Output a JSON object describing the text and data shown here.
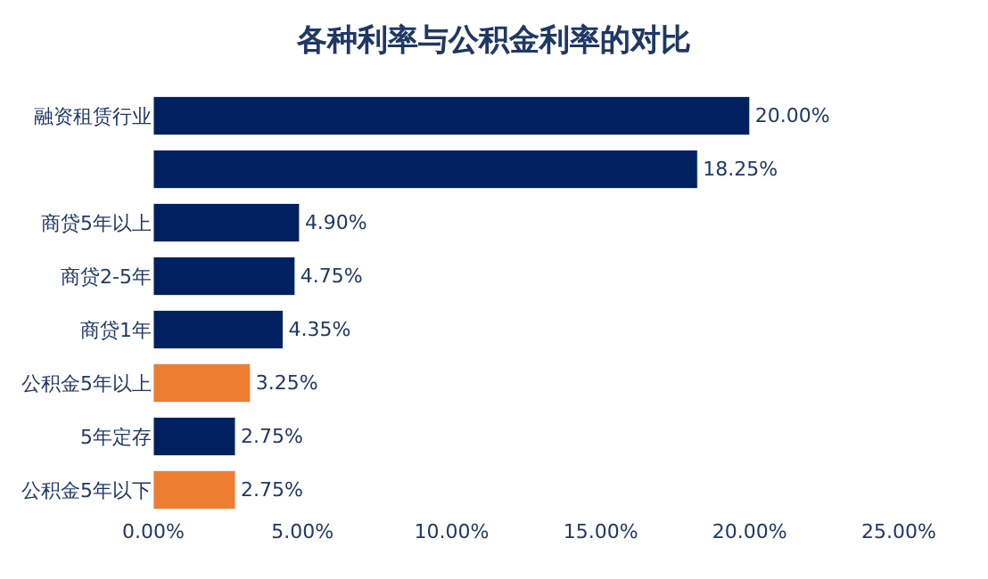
{
  "chart_data": {
    "type": "bar",
    "orientation": "horizontal",
    "title": "各种利率与公积金利率的对比",
    "categories": [
      "融资租赁行业",
      null,
      "商贷5年以上",
      "商贷2-5年",
      "商贷1年",
      "公积金5年以上",
      "5年定存",
      "公积金5年以下"
    ],
    "values": [
      20.0,
      18.25,
      4.9,
      4.75,
      4.35,
      3.25,
      2.75,
      2.75
    ],
    "colors": [
      "#002060",
      "#002060",
      "#002060",
      "#002060",
      "#002060",
      "#ed7d31",
      "#002060",
      "#ed7d31"
    ],
    "value_labels": [
      "20.00%",
      "18.25%",
      "4.90%",
      "4.75%",
      "4.35%",
      "3.25%",
      "2.75%",
      "2.75%"
    ],
    "xlim": [
      0,
      25
    ],
    "xticks": [
      {
        "value": 0,
        "label": "0.00%"
      },
      {
        "value": 5,
        "label": "5.00%"
      },
      {
        "value": 10,
        "label": "10.00%"
      },
      {
        "value": 15,
        "label": "15.00%"
      },
      {
        "value": 20,
        "label": "20.00%"
      },
      {
        "value": 25,
        "label": "25.00%"
      }
    ],
    "legend": false
  }
}
